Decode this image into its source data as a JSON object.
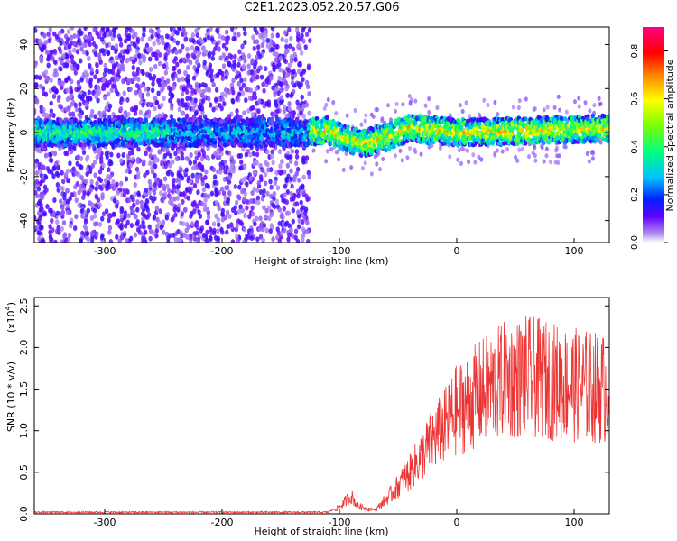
{
  "title": "C2E1.2023.052.20.57.G06",
  "colorbar": {
    "label": "Normalized spectral amplitude",
    "ticks": [
      "0.0",
      "0.2",
      "0.4",
      "0.6",
      "0.8"
    ],
    "range": [
      0,
      0.9
    ]
  },
  "chart_data": [
    {
      "type": "heatmap",
      "xlabel": "Height of straight line (km)",
      "ylabel": "Frequency (Hz)",
      "xlim": [
        -360,
        130
      ],
      "ylim": [
        -50,
        48
      ],
      "xticks": [
        "-300",
        "-200",
        "-100",
        "0",
        "100"
      ],
      "yticks": [
        "-40",
        "-20",
        "0",
        "20",
        "40"
      ],
      "ridge_center_hz": [
        {
          "x": -350,
          "y": 0
        },
        {
          "x": -250,
          "y": 0
        },
        {
          "x": -130,
          "y": 0
        },
        {
          "x": -110,
          "y": 1
        },
        {
          "x": -95,
          "y": -3
        },
        {
          "x": -80,
          "y": -5
        },
        {
          "x": -60,
          "y": -2
        },
        {
          "x": -40,
          "y": 2
        },
        {
          "x": 0,
          "y": 0
        },
        {
          "x": 130,
          "y": 2
        }
      ],
      "noise_extent_km": [
        -360,
        -125
      ]
    },
    {
      "type": "line",
      "xlabel": "Height of straight line (km)",
      "ylabel": "SNR (10 * v/v)",
      "scale_note": "(x10",
      "scale_exp": "4",
      "xlim": [
        -360,
        130
      ],
      "ylim": [
        0,
        2.6
      ],
      "xticks": [
        "-300",
        "-200",
        "-100",
        "0",
        "100"
      ],
      "yticks": [
        "0.0",
        "0.5",
        "1.0",
        "1.5",
        "2.0",
        "2.5"
      ],
      "color": "#ee3333",
      "envelope": [
        {
          "x": -360,
          "y": 0.01
        },
        {
          "x": -110,
          "y": 0.01
        },
        {
          "x": -100,
          "y": 0.08
        },
        {
          "x": -90,
          "y": 0.22
        },
        {
          "x": -85,
          "y": 0.1
        },
        {
          "x": -70,
          "y": 0.04
        },
        {
          "x": -55,
          "y": 0.25
        },
        {
          "x": -40,
          "y": 0.5
        },
        {
          "x": -30,
          "y": 0.7
        },
        {
          "x": -20,
          "y": 0.9
        },
        {
          "x": -10,
          "y": 1.05
        },
        {
          "x": 0,
          "y": 1.25
        },
        {
          "x": 20,
          "y": 1.45
        },
        {
          "x": 40,
          "y": 1.6
        },
        {
          "x": 60,
          "y": 1.65
        },
        {
          "x": 80,
          "y": 1.6
        },
        {
          "x": 100,
          "y": 1.55
        },
        {
          "x": 130,
          "y": 1.5
        }
      ]
    }
  ]
}
